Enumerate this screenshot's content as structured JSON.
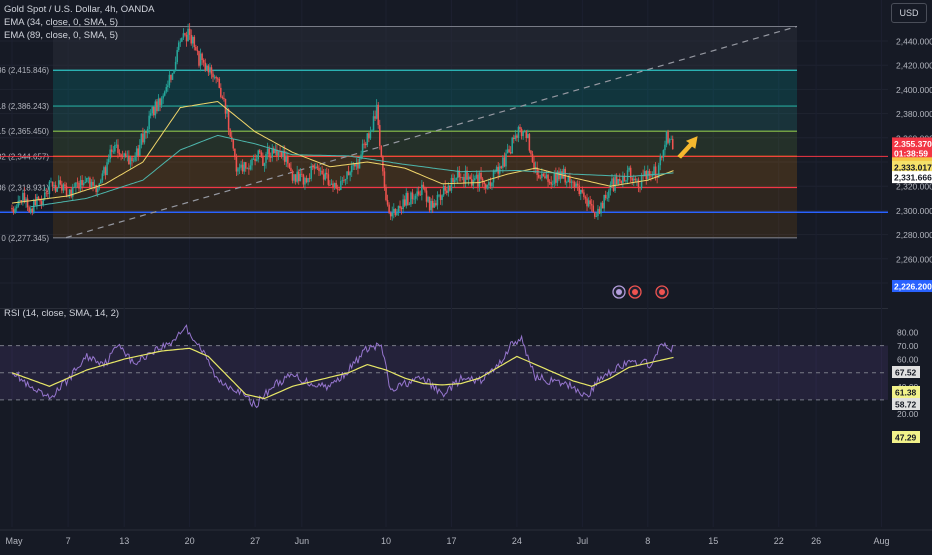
{
  "header": {
    "title": "Gold Spot / U.S. Dollar, 4h, OANDA",
    "ema1": "EMA (34, close, 0, SMA, 5)",
    "ema2": "EMA (89, close, 0, SMA, 5)",
    "currency_button": "USD"
  },
  "rsi_panel": {
    "title": "RSI (14, close, SMA, 14, 2)",
    "levels": [
      80,
      70,
      60,
      50,
      40,
      30,
      20
    ],
    "level_labels": [
      "80.00",
      "70.00",
      "60.00",
      "50.00",
      "40.00",
      "30.00",
      "20.00"
    ],
    "band_upper": 70,
    "band_lower": 30,
    "midline": 50,
    "badges": [
      {
        "value": "67.52",
        "bg": "#e0e0e0",
        "fg": "#131722"
      },
      {
        "value": "61.38",
        "bg": "#f2f28a",
        "fg": "#131722"
      },
      {
        "value": "58.72",
        "bg": "#e0e0e0",
        "fg": "#131722"
      },
      {
        "value": "47.29",
        "bg": "#f2f28a",
        "fg": "#131722"
      }
    ]
  },
  "price_axis": {
    "ticks": [
      2440,
      2420,
      2400,
      2380,
      2360,
      2340,
      2320,
      2300,
      2280,
      2260,
      2240
    ],
    "tick_labels": [
      "2,440.000",
      "2,420.000",
      "2,400.000",
      "2,380.000",
      "2,360.000",
      "2,340.000",
      "2,320.000",
      "2,300.000",
      "2,280.000",
      "2,260.000",
      "2,240.000"
    ],
    "badges": [
      {
        "value": "2,355.370",
        "price": 2355.37,
        "bg": "#f23645",
        "fg": "#ffffff"
      },
      {
        "value": "01:38:59",
        "price": 2347.6,
        "bg": "#f23645",
        "fg": "#ffffff"
      },
      {
        "value": "2,338.917",
        "price": 2338.917,
        "bg": "#f5c542",
        "fg": "#131722"
      },
      {
        "value": "2,333.017",
        "price": 2336.0,
        "bg": "#f5e16a",
        "fg": "#131722"
      },
      {
        "value": "2,331.666",
        "price": 2327.5,
        "bg": "#ffffff",
        "fg": "#131722"
      },
      {
        "value": "2,226.200",
        "price": 2237.5,
        "bg": "#2962ff",
        "fg": "#ffffff"
      }
    ]
  },
  "time_axis": {
    "labels": [
      "May",
      "7",
      "13",
      "20",
      "27",
      "Jun",
      "10",
      "17",
      "24",
      "Jul",
      "8",
      "15",
      "22",
      "26",
      "Aug"
    ]
  },
  "chart_data": [
    {
      "type": "candlestick",
      "title": "Gold Spot / U.S. Dollar, 4h, OANDA",
      "ylim": [
        2228,
        2463
      ],
      "x_range_days": [
        0,
        93
      ],
      "x_origin": "May 1",
      "fib_levels": [
        {
          "label": ".786 (2,415.846)",
          "price": 2415.846,
          "color": "#2ec4c4"
        },
        {
          "label": "0.618 (2,386.243)",
          "price": 2386.243,
          "color": "#26a69a"
        },
        {
          "label": "0.5 (2,365.450)",
          "price": 2365.45,
          "color": "#8bc34a"
        },
        {
          "label": "0.382 (2,344.657)",
          "price": 2344.657,
          "color": "#ff9800"
        },
        {
          "label": "0.236 (2,318.931)",
          "price": 2318.931,
          "color": "#f23645"
        },
        {
          "label": "0 (2,277.345)",
          "price": 2277.345,
          "color": "#787b86"
        }
      ],
      "horizontal_lines": [
        {
          "price": 2298.5,
          "color": "#2962ff"
        },
        {
          "price": 2344.6,
          "color": "#f23645"
        }
      ],
      "trendline": {
        "from": [
          1.5,
          2277.5
        ],
        "to": [
          29.5,
          2452
        ]
      },
      "close_path": [
        [
          0,
          2302
        ],
        [
          1,
          2312
        ],
        [
          2,
          2300
        ],
        [
          3,
          2308
        ],
        [
          4,
          2318
        ],
        [
          5,
          2322
        ],
        [
          6,
          2312
        ],
        [
          7,
          2322
        ],
        [
          8,
          2328
        ],
        [
          9,
          2318
        ],
        [
          10,
          2334
        ],
        [
          11,
          2355
        ],
        [
          12,
          2342
        ],
        [
          13,
          2340
        ],
        [
          14,
          2362
        ],
        [
          15,
          2380
        ],
        [
          16,
          2395
        ],
        [
          17,
          2410
        ],
        [
          18,
          2440
        ],
        [
          19,
          2445
        ],
        [
          20,
          2425
        ],
        [
          21,
          2420
        ],
        [
          22,
          2410
        ],
        [
          23,
          2378
        ],
        [
          24,
          2338
        ],
        [
          25,
          2335
        ],
        [
          26,
          2345
        ],
        [
          27,
          2342
        ],
        [
          28,
          2352
        ],
        [
          29,
          2345
        ],
        [
          30,
          2330
        ],
        [
          31,
          2325
        ],
        [
          32,
          2332
        ],
        [
          33,
          2335
        ],
        [
          34,
          2322
        ],
        [
          35,
          2320
        ],
        [
          36,
          2330
        ],
        [
          37,
          2340
        ],
        [
          38,
          2362
        ],
        [
          39,
          2382
        ],
        [
          40,
          2305
        ],
        [
          41,
          2294
        ],
        [
          42,
          2308
        ],
        [
          43,
          2312
        ],
        [
          44,
          2318
        ],
        [
          45,
          2300
        ],
        [
          46,
          2315
        ],
        [
          47,
          2322
        ],
        [
          48,
          2330
        ],
        [
          49,
          2325
        ],
        [
          50,
          2325
        ],
        [
          51,
          2322
        ],
        [
          52,
          2332
        ],
        [
          53,
          2345
        ],
        [
          54,
          2365
        ],
        [
          55,
          2365
        ],
        [
          56,
          2332
        ],
        [
          57,
          2324
        ],
        [
          58,
          2328
        ],
        [
          59,
          2330
        ],
        [
          60,
          2322
        ],
        [
          61,
          2318
        ],
        [
          62,
          2300
        ],
        [
          63,
          2302
        ],
        [
          64,
          2320
        ],
        [
          65,
          2325
        ],
        [
          66,
          2330
        ],
        [
          67,
          2323
        ],
        [
          68,
          2330
        ],
        [
          69,
          2333
        ],
        [
          70,
          2360
        ],
        [
          70.8,
          2355.37
        ]
      ],
      "ema34_path": [
        [
          0,
          2306
        ],
        [
          6,
          2312
        ],
        [
          10,
          2322
        ],
        [
          14,
          2340
        ],
        [
          18,
          2385
        ],
        [
          22,
          2390
        ],
        [
          26,
          2365
        ],
        [
          30,
          2348
        ],
        [
          34,
          2336
        ],
        [
          38,
          2340
        ],
        [
          42,
          2335
        ],
        [
          46,
          2322
        ],
        [
          50,
          2323
        ],
        [
          53,
          2330
        ],
        [
          56,
          2335
        ],
        [
          60,
          2327
        ],
        [
          64,
          2320
        ],
        [
          68,
          2325
        ],
        [
          70.8,
          2333
        ]
      ],
      "ema89_path": [
        [
          2,
          2303
        ],
        [
          8,
          2310
        ],
        [
          14,
          2325
        ],
        [
          18,
          2350
        ],
        [
          22,
          2362
        ],
        [
          26,
          2355
        ],
        [
          30,
          2346
        ],
        [
          36,
          2345
        ],
        [
          42,
          2338
        ],
        [
          48,
          2332
        ],
        [
          54,
          2333
        ],
        [
          60,
          2330
        ],
        [
          66,
          2328
        ],
        [
          70.8,
          2331
        ]
      ],
      "event_icons": [
        "lightning-icon",
        "us-flag-icon",
        "us-flag-icon"
      ]
    },
    {
      "type": "line",
      "title": "RSI (14, close, SMA, 14, 2)",
      "ylim": [
        18,
        86
      ],
      "x_range_days": [
        0,
        93
      ],
      "series": [
        {
          "name": "RSI",
          "color": "#9575cd",
          "points": [
            [
              0,
              52
            ],
            [
              2,
              38
            ],
            [
              4,
              31
            ],
            [
              6,
              45
            ],
            [
              8,
              62
            ],
            [
              10,
              57
            ],
            [
              11.5,
              72
            ],
            [
              13,
              56
            ],
            [
              15,
              66
            ],
            [
              17,
              72
            ],
            [
              18.5,
              84
            ],
            [
              20,
              70
            ],
            [
              21,
              58
            ],
            [
              22,
              44
            ],
            [
              24,
              38
            ],
            [
              26,
              26
            ],
            [
              28,
              41
            ],
            [
              30,
              48
            ],
            [
              32,
              42
            ],
            [
              34,
              40
            ],
            [
              36,
              52
            ],
            [
              38,
              68
            ],
            [
              39.5,
              70
            ],
            [
              40.5,
              36
            ],
            [
              42,
              42
            ],
            [
              44,
              46
            ],
            [
              46,
              34
            ],
            [
              48,
              45
            ],
            [
              50,
              44
            ],
            [
              52,
              55
            ],
            [
              53.5,
              72
            ],
            [
              54.5,
              74
            ],
            [
              56,
              47
            ],
            [
              58,
              43
            ],
            [
              60,
              40
            ],
            [
              61.5,
              32
            ],
            [
              63,
              47
            ],
            [
              65,
              55
            ],
            [
              67,
              58
            ],
            [
              68.5,
              56
            ],
            [
              69.5,
              71
            ],
            [
              70.8,
              67.52
            ]
          ]
        },
        {
          "name": "RSI-based MA",
          "color": "#e8e867",
          "points": [
            [
              0,
              50
            ],
            [
              4,
              40
            ],
            [
              8,
              52
            ],
            [
              12,
              60
            ],
            [
              16,
              66
            ],
            [
              19,
              68
            ],
            [
              21,
              62
            ],
            [
              23,
              48
            ],
            [
              25,
              34
            ],
            [
              27,
              31
            ],
            [
              30,
              40
            ],
            [
              33,
              45
            ],
            [
              36,
              50
            ],
            [
              38,
              56
            ],
            [
              40,
              52
            ],
            [
              42,
              46
            ],
            [
              44,
              42
            ],
            [
              46,
              41
            ],
            [
              48,
              42
            ],
            [
              50,
              46
            ],
            [
              52,
              54
            ],
            [
              54,
              62
            ],
            [
              56,
              56
            ],
            [
              58,
              50
            ],
            [
              60,
              44
            ],
            [
              62,
              40
            ],
            [
              64,
              46
            ],
            [
              66,
              54
            ],
            [
              68,
              57
            ],
            [
              70.8,
              61.38
            ]
          ]
        }
      ]
    }
  ]
}
